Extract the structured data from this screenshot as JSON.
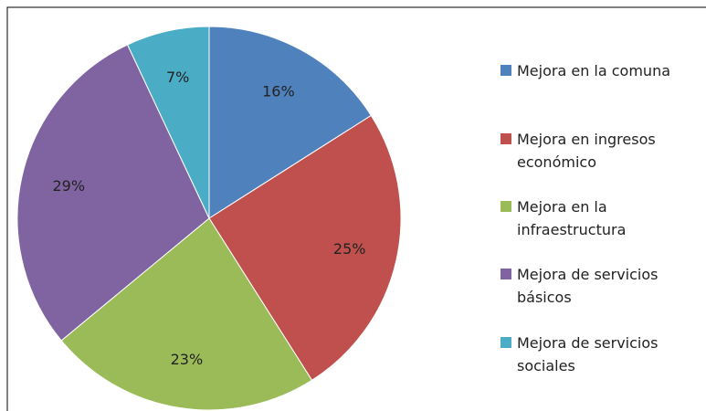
{
  "chart_data": {
    "type": "pie",
    "categories": [
      "Mejora en la comuna",
      "Mejora en ingresos económico",
      "Mejora en la infraestructura",
      "Mejora de servicios básicos",
      "Mejora de servicios sociales"
    ],
    "values": [
      16,
      25,
      23,
      29,
      7
    ],
    "value_labels": [
      "16%",
      "25%",
      "23%",
      "29%",
      "7%"
    ],
    "colors": [
      "#4f81bd",
      "#c0504d",
      "#9bbb59",
      "#8064a2",
      "#4bacc6"
    ],
    "legend": "right"
  }
}
